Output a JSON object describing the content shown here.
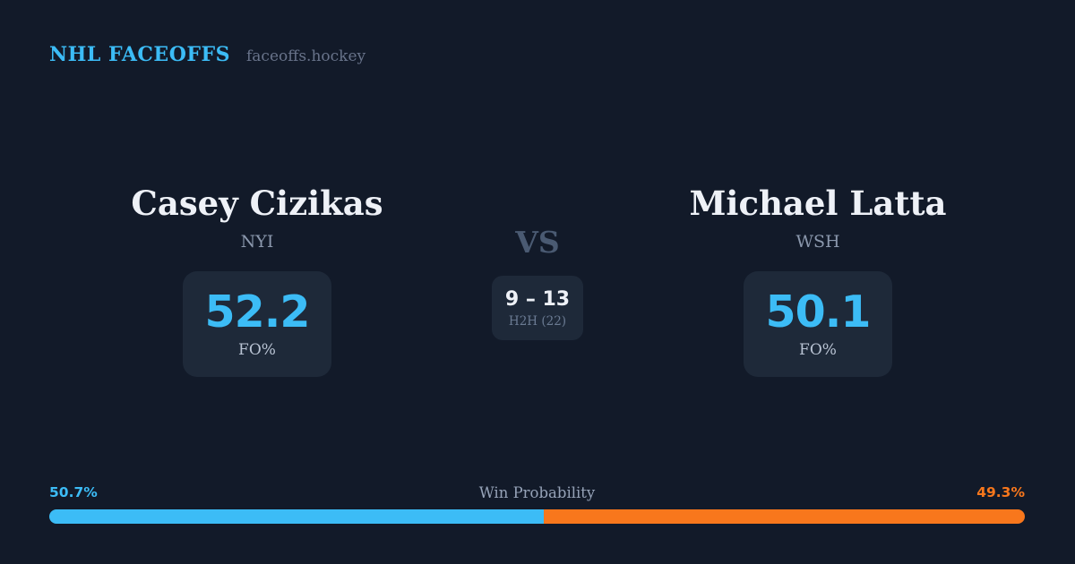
{
  "brand": {
    "title": "NHL FACEOFFS",
    "domain": "faceoffs.hockey"
  },
  "matchup": {
    "left": {
      "name": "Casey Cizikas",
      "team": "NYI",
      "stat_value": "52.2",
      "stat_label": "FO%"
    },
    "right": {
      "name": "Michael Latta",
      "team": "WSH",
      "stat_value": "50.1",
      "stat_label": "FO%"
    },
    "vs_label": "VS",
    "h2h": {
      "record": "9 – 13",
      "label": "H2H (22)"
    }
  },
  "win_probability": {
    "title": "Win Probability",
    "left_pct_label": "50.7%",
    "right_pct_label": "49.3%",
    "left_value": 50.7,
    "right_value": 49.3
  },
  "colors": {
    "bg": "#121a29",
    "card": "#1e2939",
    "blue": "#3cbcf6",
    "orange": "#f8771c",
    "white": "#eef1f7",
    "muted": "#8b98ad",
    "slate": "#4a5a72",
    "dim": "#6b7b93"
  }
}
